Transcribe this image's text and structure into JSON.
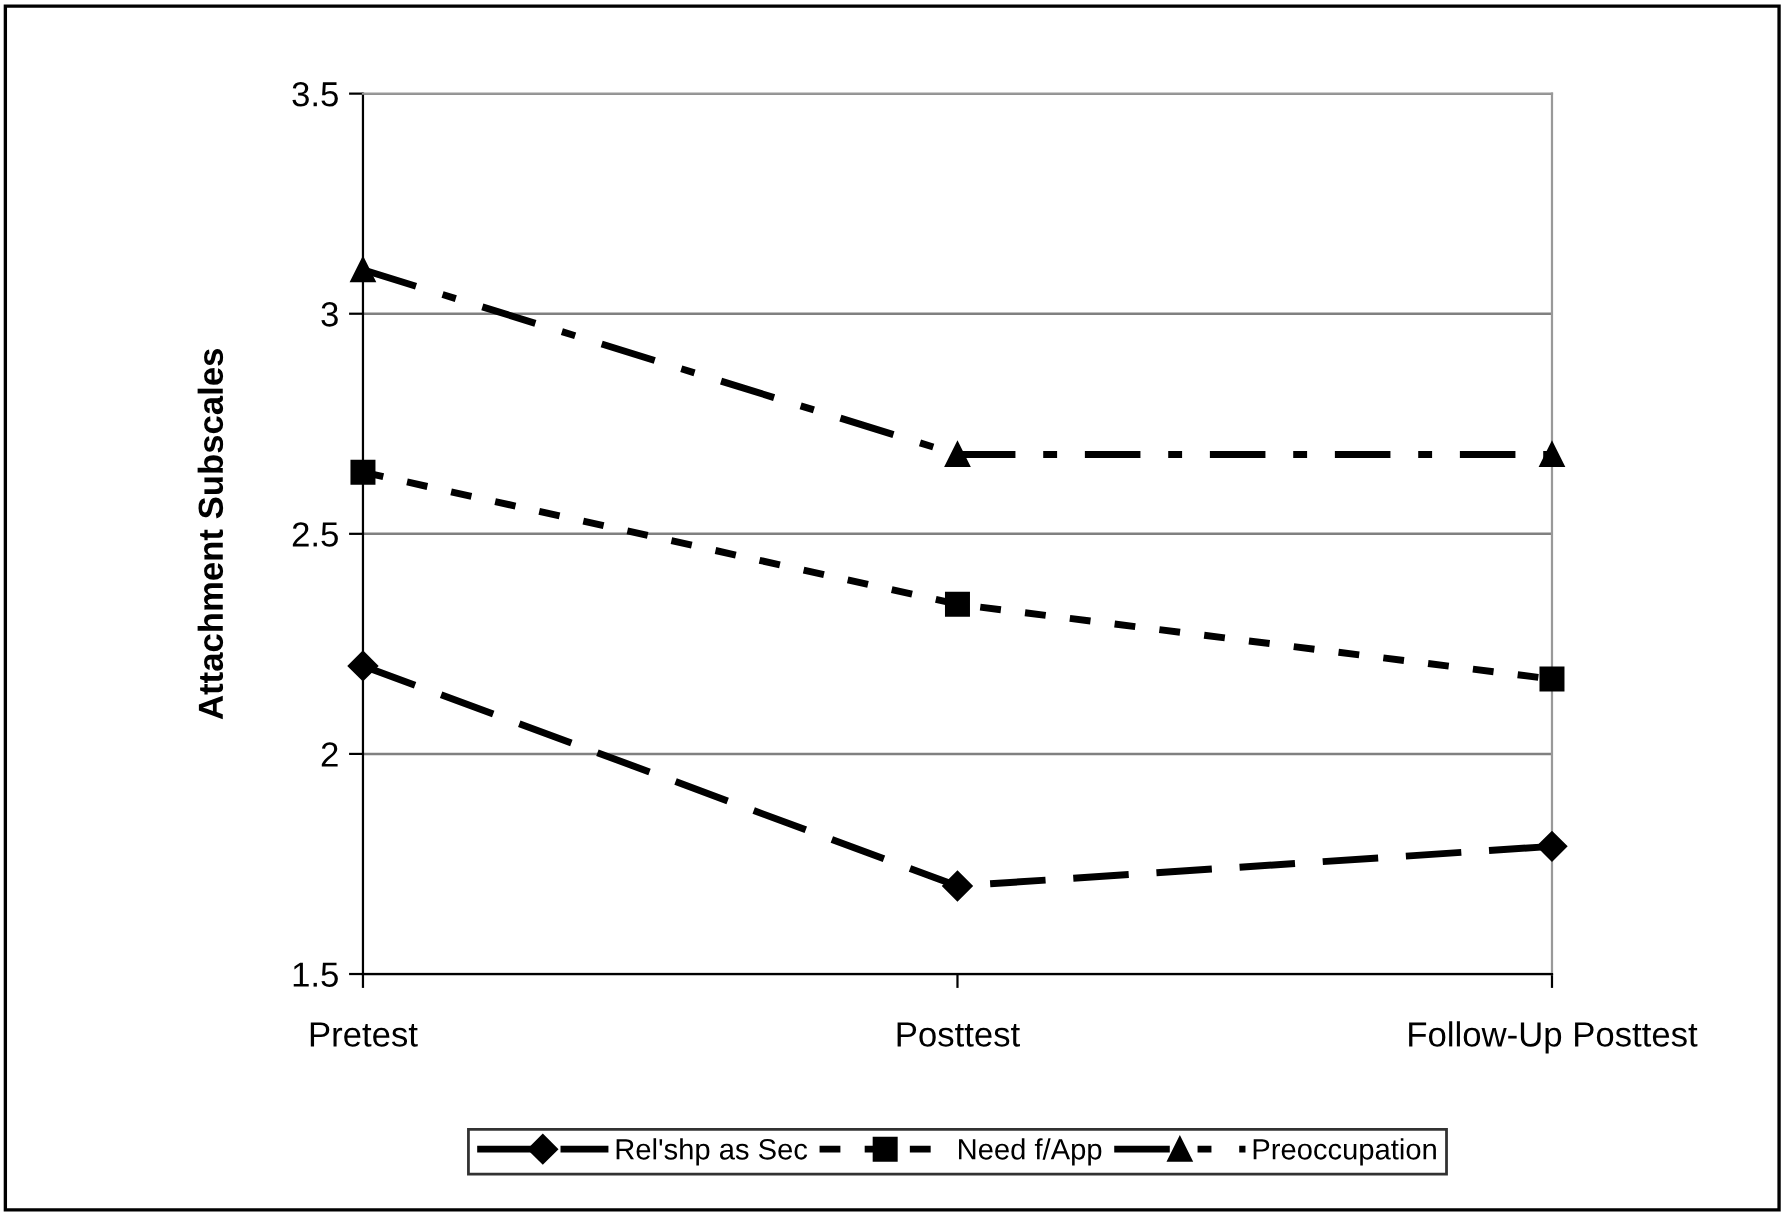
{
  "chart_data": {
    "type": "line",
    "ylabel": "Attachment Subscales",
    "categories": [
      "Pretest",
      "Posttest",
      "Follow-Up Posttest"
    ],
    "series": [
      {
        "name": "Rel'shp as Sec",
        "color": "#000000",
        "values": [
          2.2,
          1.7,
          1.79
        ],
        "marker": "diamond",
        "line_style": "dashed"
      },
      {
        "name": "Need f/App",
        "color": "#000000",
        "values": [
          2.64,
          2.34,
          2.17
        ],
        "marker": "square",
        "line_style": "dotted"
      },
      {
        "name": "Preoccupation",
        "color": "#000000",
        "values": [
          3.1,
          2.68,
          2.68
        ],
        "marker": "triangle",
        "line_style": "dashdot"
      }
    ],
    "ylim": [
      1.5,
      3.5
    ],
    "yticks": [
      1.5,
      2,
      2.5,
      3,
      3.5
    ],
    "grid": "y",
    "legend": "bottom"
  }
}
